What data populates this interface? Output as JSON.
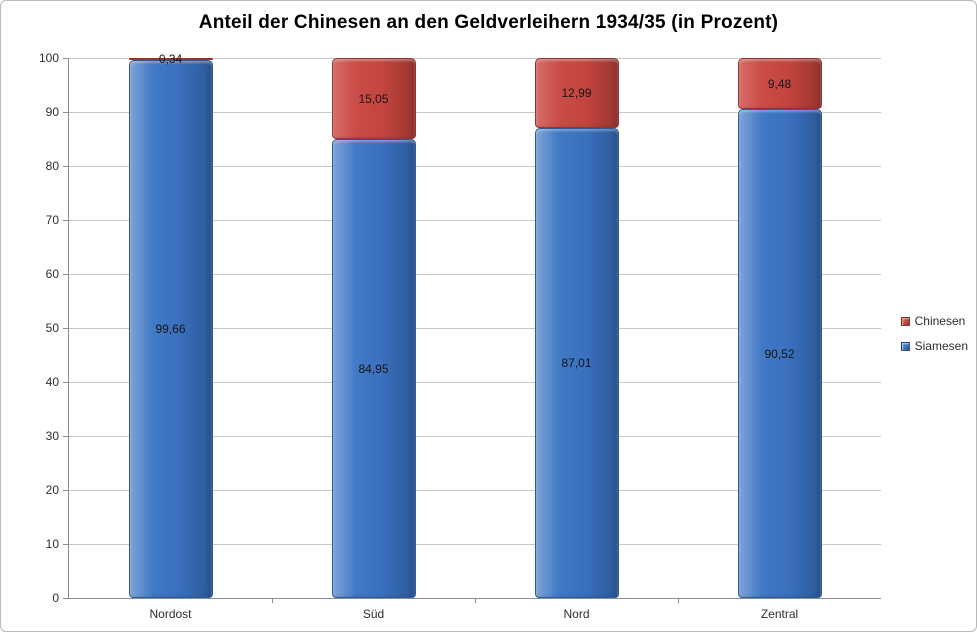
{
  "title": "Anteil der Chinesen an den Geldverleihern 1934/35 (in Prozent)",
  "legend": {
    "items": [
      {
        "label": "Chinesen",
        "color": "#C0504D"
      },
      {
        "label": "Siamesen",
        "color": "#4F81BD"
      }
    ]
  },
  "chart_data": {
    "type": "bar",
    "stacked": true,
    "title": "Anteil der Chinesen an den Geldverleihern 1934/35 (in Prozent)",
    "categories": [
      "Nordost",
      "Süd",
      "Nord",
      "Zentral"
    ],
    "series": [
      {
        "name": "Siamesen",
        "values": [
          99.66,
          84.95,
          87.01,
          90.52
        ],
        "value_labels": [
          "99,66",
          "84,95",
          "87,01",
          "90,52"
        ]
      },
      {
        "name": "Chinesen",
        "values": [
          0.34,
          15.05,
          12.99,
          9.48
        ],
        "value_labels": [
          "0,34",
          "15,05",
          "12,99",
          "9,48"
        ]
      }
    ],
    "xlabel": "",
    "ylabel": "",
    "ylim": [
      0,
      100
    ],
    "ytick_step": 10,
    "ytick_labels": [
      "0",
      "10",
      "20",
      "30",
      "40",
      "50",
      "60",
      "70",
      "80",
      "90",
      "100"
    ],
    "grid": true,
    "legend_position": "right"
  },
  "colors": {
    "siamesen_gradient": [
      "#7fa5d8",
      "#4179c5",
      "#3a70be",
      "#2c5897"
    ],
    "siamesen_border": "#2d5a98",
    "chinesen_gradient": [
      "#d66d67",
      "#ca4c47",
      "#c4453f",
      "#983530"
    ],
    "chinesen_border": "#96342f",
    "gridline": "#c8c8c8",
    "axis": "#8c8c8c",
    "text": "#2e2e2e"
  }
}
